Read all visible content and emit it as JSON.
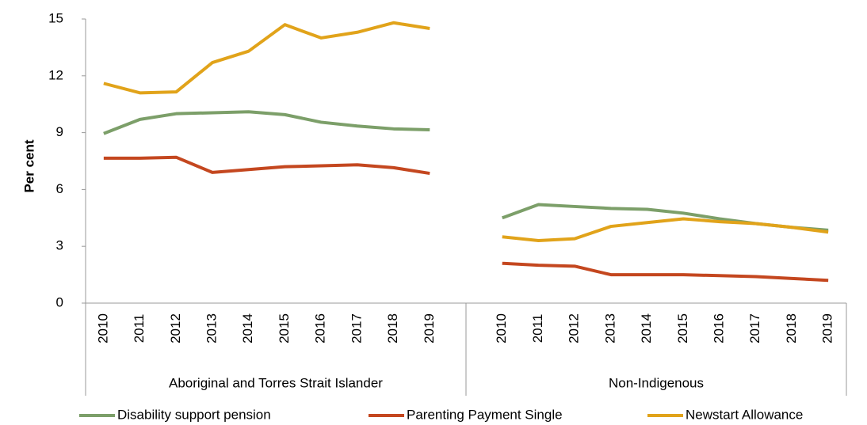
{
  "chart_data": {
    "type": "line",
    "ylabel": "Per cent",
    "categories": [
      "2010",
      "2011",
      "2012",
      "2013",
      "2014",
      "2015",
      "2016",
      "2017",
      "2018",
      "2019",
      null,
      "2010",
      "2011",
      "2012",
      "2013",
      "2014",
      "2015",
      "2016",
      "2017",
      "2018",
      "2019"
    ],
    "group_labels": [
      "Aboriginal and Torres Strait Islander",
      "Non-Indigenous"
    ],
    "series": [
      {
        "name": "Disability support pension",
        "color": "#7c9f69",
        "values": [
          8.95,
          9.7,
          10.0,
          10.05,
          10.1,
          9.95,
          9.55,
          9.35,
          9.2,
          9.15,
          null,
          4.5,
          5.2,
          5.1,
          5.0,
          4.95,
          4.75,
          4.45,
          4.2,
          4.0,
          3.85
        ]
      },
      {
        "name": "Parenting Payment Single",
        "color": "#c4471f",
        "values": [
          7.65,
          7.65,
          7.7,
          6.9,
          7.05,
          7.2,
          7.25,
          7.3,
          7.15,
          6.85,
          null,
          2.1,
          2.0,
          1.95,
          1.5,
          1.5,
          1.5,
          1.45,
          1.4,
          1.3,
          1.2
        ]
      },
      {
        "name": "Newstart Allowance",
        "color": "#e1a31a",
        "values": [
          11.6,
          11.1,
          11.15,
          12.7,
          13.3,
          14.7,
          14.0,
          14.3,
          14.8,
          14.5,
          null,
          3.5,
          3.3,
          3.4,
          4.05,
          4.25,
          4.45,
          4.3,
          4.2,
          4.0,
          3.75
        ]
      }
    ],
    "ylim": [
      0,
      15
    ],
    "yticks": [
      0,
      3,
      6,
      9,
      12,
      15
    ],
    "grid": false,
    "legend": "bottom"
  }
}
